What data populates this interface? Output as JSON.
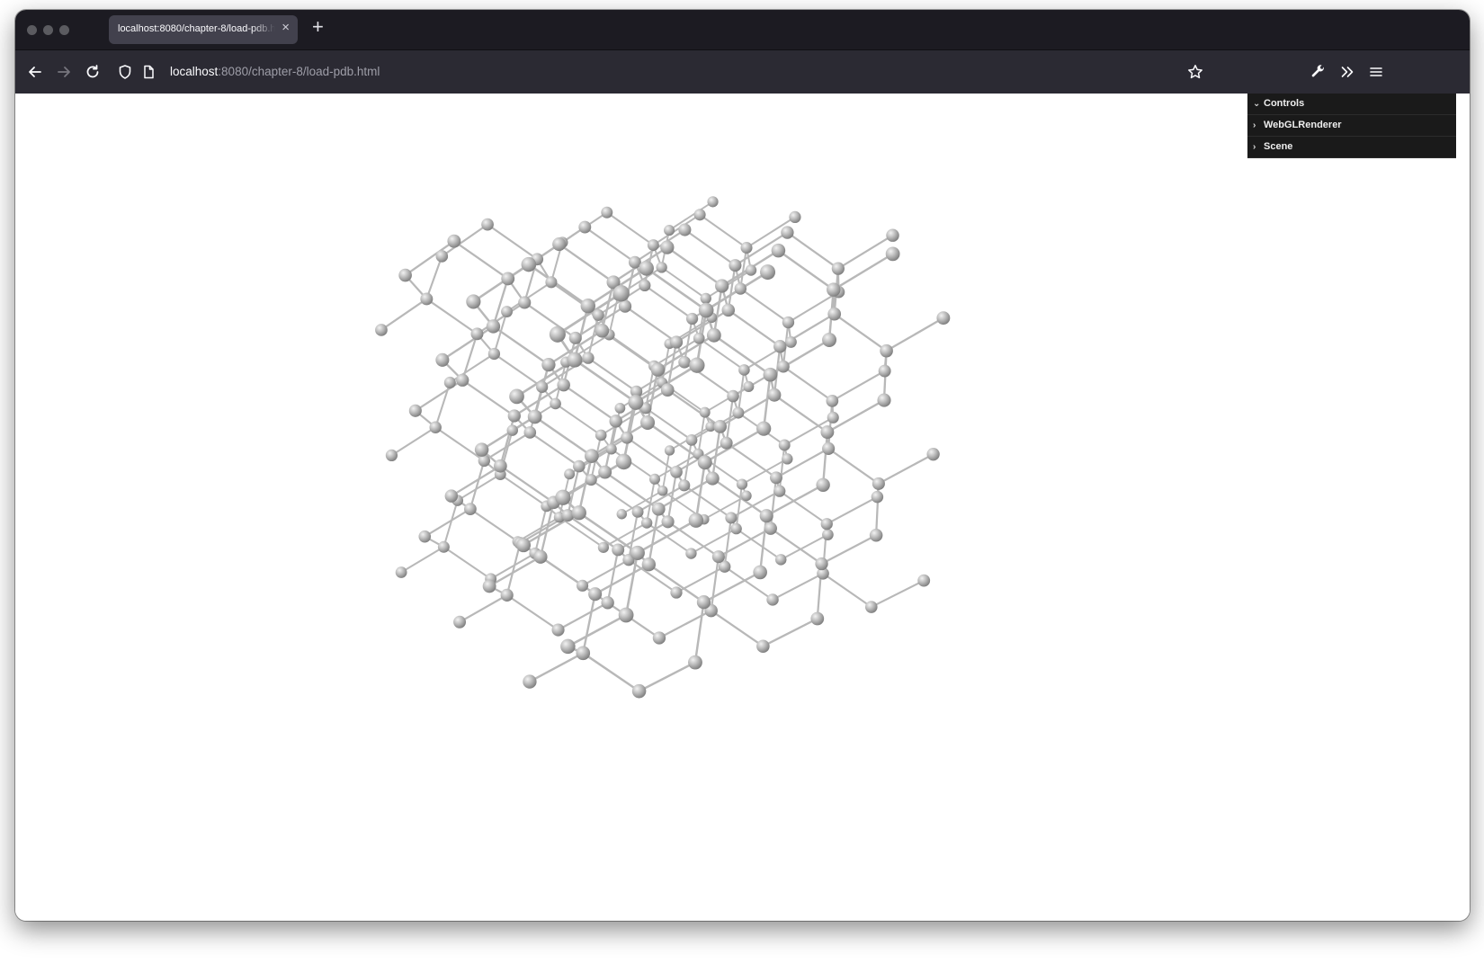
{
  "tab": {
    "title": "localhost:8080/chapter-8/load-pdb.html",
    "close_glyph": "×"
  },
  "newtab": {
    "glyph": "+"
  },
  "address": {
    "host": "localhost",
    "rest": ":8080/chapter-8/load-pdb.html"
  },
  "icons": {
    "back": "arrow-left-icon",
    "forward": "arrow-right-icon",
    "reload": "reload-icon",
    "shield": "shield-icon",
    "page": "page-icon",
    "bookmark": "star-icon",
    "devtools": "wrench-icon",
    "overflow": "chevron-double-right-icon",
    "menu": "hamburger-menu-icon"
  },
  "gui": {
    "folders": [
      {
        "label": "Controls",
        "open": true,
        "chevron": "⌄"
      },
      {
        "label": "WebGLRenderer",
        "open": false,
        "chevron": "›"
      },
      {
        "label": "Scene",
        "open": false,
        "chevron": "›"
      }
    ]
  },
  "colors": {
    "titlebar": "#1c1b22",
    "navbar": "#2b2a33",
    "tab": "#42414d",
    "gui": "#1a1a1a",
    "atom": "#b5b5b5"
  }
}
